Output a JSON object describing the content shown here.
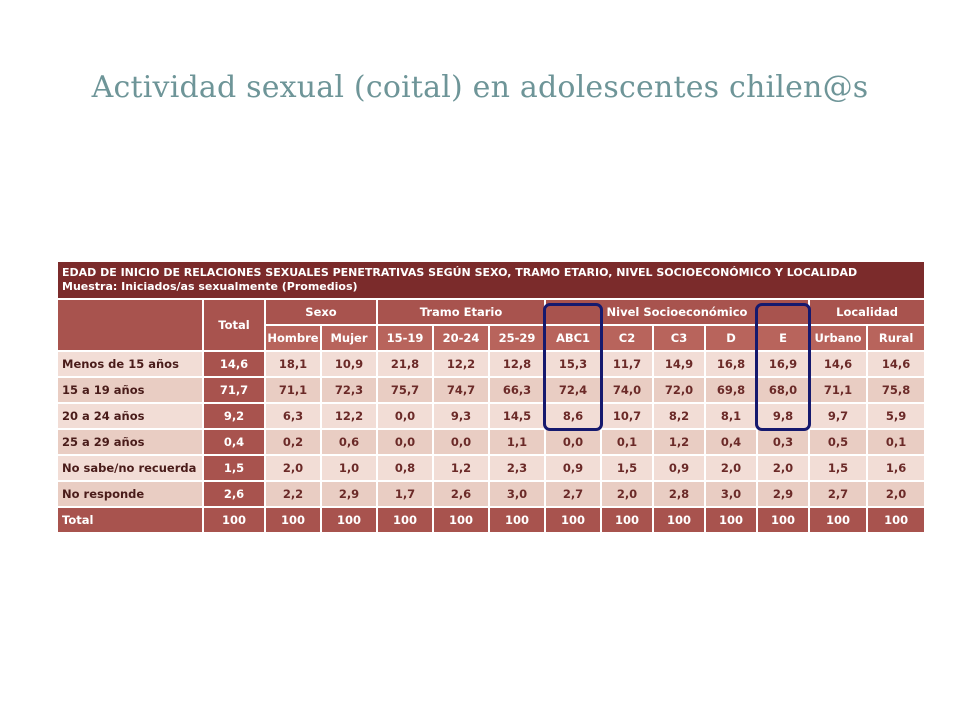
{
  "slide": {
    "title": "Actividad sexual (coital) en adolescentes chilen@s"
  },
  "table": {
    "caption_line1": "EDAD DE INICIO DE RELACIONES SEXUALES PENETRATIVAS SEGÚN SEXO, TRAMO ETARIO, NIVEL SOCIOECONÓMICO Y LOCALIDAD",
    "caption_line2": "Muestra: Iniciados/as sexualmente (Promedios)",
    "group_headers": {
      "total": "Total",
      "sexo": "Sexo",
      "tramo": "Tramo Etario",
      "nivel": "Nivel Socioeconómico",
      "localidad": "Localidad"
    },
    "sub_headers": [
      "Hombre",
      "Mujer",
      "15-19",
      "20-24",
      "25-29",
      "ABC1",
      "C2",
      "C3",
      "D",
      "E",
      "Urbano",
      "Rural"
    ],
    "rows": [
      {
        "label": "Menos de 15 años",
        "total": "14,6",
        "values": [
          "18,1",
          "10,9",
          "21,8",
          "12,2",
          "12,8",
          "15,3",
          "11,7",
          "14,9",
          "16,8",
          "16,9",
          "14,6",
          "14,6"
        ]
      },
      {
        "label": "15 a 19 años",
        "total": "71,7",
        "values": [
          "71,1",
          "72,3",
          "75,7",
          "74,7",
          "66,3",
          "72,4",
          "74,0",
          "72,0",
          "69,8",
          "68,0",
          "71,1",
          "75,8"
        ]
      },
      {
        "label": "20 a 24 años",
        "total": "9,2",
        "values": [
          "6,3",
          "12,2",
          "0,0",
          "9,3",
          "14,5",
          "8,6",
          "10,7",
          "8,2",
          "8,1",
          "9,8",
          "9,7",
          "5,9"
        ]
      },
      {
        "label": "25 a 29 años",
        "total": "0,4",
        "values": [
          "0,2",
          "0,6",
          "0,0",
          "0,0",
          "1,1",
          "0,0",
          "0,1",
          "1,2",
          "0,4",
          "0,3",
          "0,5",
          "0,1"
        ]
      },
      {
        "label": "No sabe/no recuerda",
        "total": "1,5",
        "values": [
          "2,0",
          "1,0",
          "0,8",
          "1,2",
          "2,3",
          "0,9",
          "1,5",
          "0,9",
          "2,0",
          "2,0",
          "1,5",
          "1,6"
        ]
      },
      {
        "label": "No responde",
        "total": "2,6",
        "values": [
          "2,2",
          "2,9",
          "1,7",
          "2,6",
          "3,0",
          "2,7",
          "2,0",
          "2,8",
          "3,0",
          "2,9",
          "2,7",
          "2,0"
        ]
      }
    ],
    "total_row": {
      "label": "Total",
      "total": "100",
      "values": [
        "100",
        "100",
        "100",
        "100",
        "100",
        "100",
        "100",
        "100",
        "100",
        "100",
        "100",
        "100"
      ]
    }
  },
  "colors": {
    "title": "#6e9598",
    "caption_bg": "#7b2b2b",
    "header_bg": "#a8534e",
    "row_light": "#f2ddd6",
    "row_dark": "#e9cdc3",
    "highlight_border": "#15196e"
  }
}
